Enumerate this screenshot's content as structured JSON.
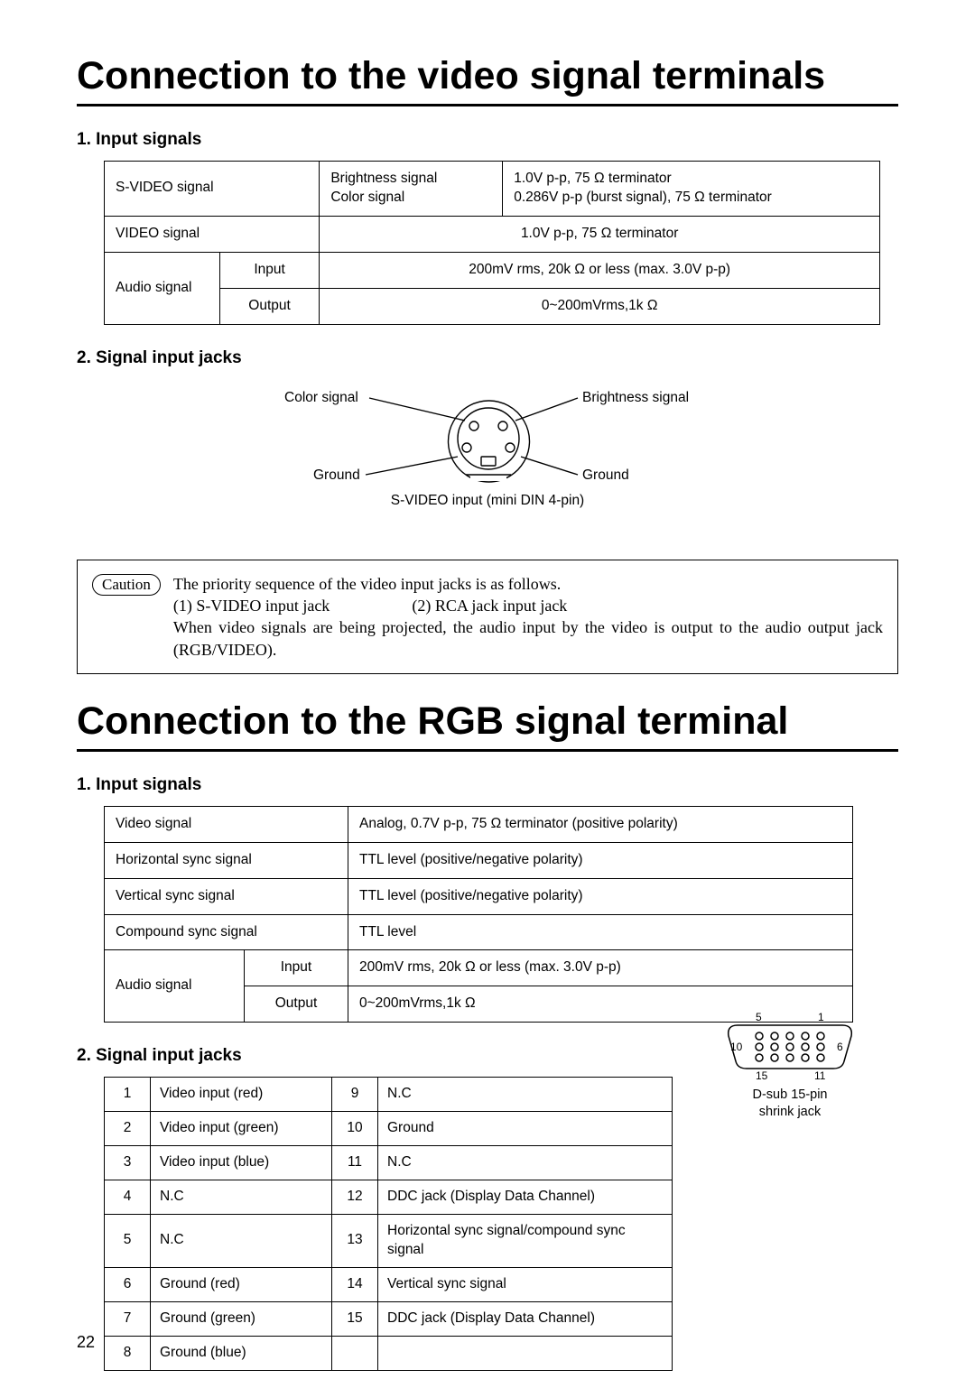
{
  "page_number": "22",
  "section1": {
    "title": "Connection to the video signal terminals",
    "sub1": "1. Input signals",
    "sub2": "2. Signal input jacks",
    "table": {
      "r1": {
        "a": "S-VIDEO signal",
        "b1": "Brightness signal",
        "b2": "Color signal",
        "c1": "1.0V p-p, 75 Ω terminator",
        "c2": "0.286V p-p (burst signal), 75 Ω terminator"
      },
      "r2": {
        "a": "VIDEO signal",
        "c": "1.0V p-p, 75 Ω terminator"
      },
      "r3": {
        "a": "Audio signal",
        "b": "Input",
        "c": "200mV rms, 20k Ω or less (max. 3.0V p-p)"
      },
      "r4": {
        "b": "Output",
        "c": "0~200mVrms,1k Ω"
      }
    },
    "diagram": {
      "color": "Color signal",
      "brightness": "Brightness signal",
      "ground": "Ground",
      "caption": "S-VIDEO input (mini DIN 4-pin)"
    },
    "caution": {
      "label": "Caution",
      "line1": "The priority sequence of the video input jacks is as follows.",
      "opt1": "(1) S-VIDEO input jack",
      "opt2": "(2) RCA jack input jack",
      "line3": "When video signals are being projected, the audio input by the video is output to the audio output jack (RGB/VIDEO)."
    }
  },
  "section2": {
    "title": "Connection to the RGB signal terminal",
    "sub1": "1. Input signals",
    "sub2": "2. Signal input jacks",
    "table1": {
      "r1": {
        "a": "Video signal",
        "c": "Analog, 0.7V p-p, 75 Ω terminator (positive polarity)"
      },
      "r2": {
        "a": "Horizontal sync signal",
        "c": "TTL level (positive/negative polarity)"
      },
      "r3": {
        "a": "Vertical sync signal",
        "c": "TTL level (positive/negative polarity)"
      },
      "r4": {
        "a": "Compound sync signal",
        "c": "TTL level"
      },
      "r5": {
        "a": "Audio signal",
        "b": "Input",
        "c": "200mV rms, 20k Ω or less (max. 3.0V p-p)"
      },
      "r6": {
        "b": "Output",
        "c": "0~200mVrms,1k Ω"
      }
    },
    "pins": [
      {
        "n": "1",
        "l": "Video input (red)",
        "n2": "9",
        "l2": "N.C"
      },
      {
        "n": "2",
        "l": "Video input (green)",
        "n2": "10",
        "l2": "Ground"
      },
      {
        "n": "3",
        "l": "Video input (blue)",
        "n2": "11",
        "l2": "N.C"
      },
      {
        "n": "4",
        "l": "N.C",
        "n2": "12",
        "l2": "DDC jack (Display Data Channel)"
      },
      {
        "n": "5",
        "l": "N.C",
        "n2": "13",
        "l2": "Horizontal sync signal/compound sync signal"
      },
      {
        "n": "6",
        "l": "Ground (red)",
        "n2": "14",
        "l2": "Vertical sync signal"
      },
      {
        "n": "7",
        "l": "Ground (green)",
        "n2": "15",
        "l2": "DDC jack (Display Data Channel)"
      },
      {
        "n": "8",
        "l": "Ground (blue)",
        "n2": "",
        "l2": ""
      }
    ],
    "dsub": {
      "n5": "5",
      "n1": "1",
      "n10": "10",
      "n6": "6",
      "n15": "15",
      "n11": "11",
      "cap1": "D-sub 15-pin",
      "cap2": "shrink jack"
    }
  }
}
